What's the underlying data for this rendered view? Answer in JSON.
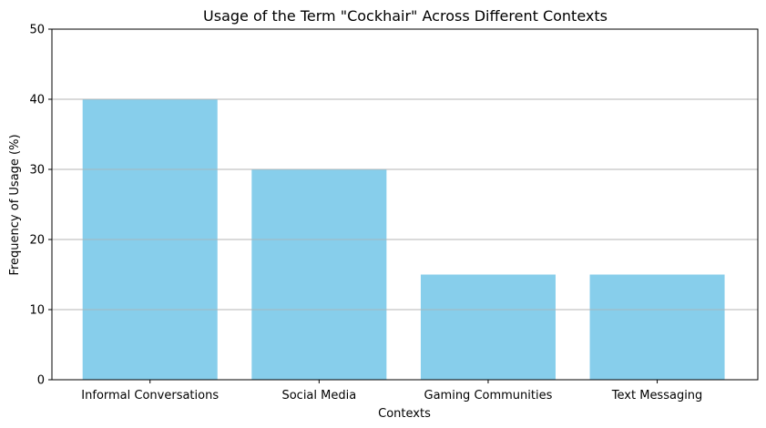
{
  "chart_data": {
    "type": "bar",
    "title": "Usage of the Term \"Cockhair\" Across Different Contexts",
    "xlabel": "Contexts",
    "ylabel": "Frequency of Usage (%)",
    "categories": [
      "Informal Conversations",
      "Social Media",
      "Gaming Communities",
      "Text Messaging"
    ],
    "values": [
      40,
      30,
      15,
      15
    ],
    "ylim": [
      0,
      50
    ],
    "yticks": [
      0,
      10,
      20,
      30,
      40,
      50
    ],
    "grid": "y",
    "bar_color": "#87CEEB",
    "grid_color": "#b0b0b0"
  }
}
